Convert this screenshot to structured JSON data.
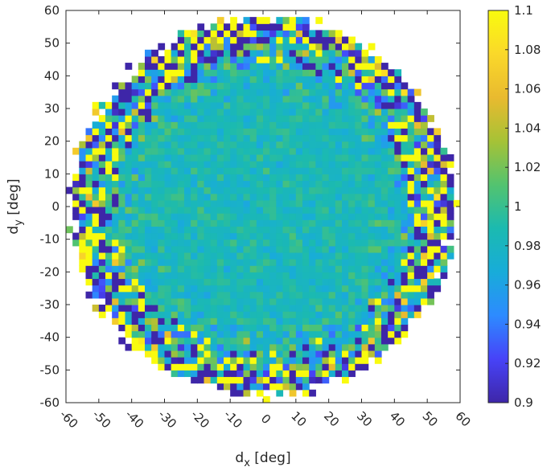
{
  "chart_data": {
    "type": "heatmap",
    "title": "",
    "xlabel": "d",
    "xlabel_sub": "x",
    "xlabel_unit": " [deg]",
    "ylabel": "d",
    "ylabel_sub": "y",
    "ylabel_unit": " [deg]",
    "xlim": [
      -60,
      60
    ],
    "ylim": [
      -60,
      60
    ],
    "x_ticks": [
      -60,
      -50,
      -40,
      -30,
      -20,
      -10,
      0,
      10,
      20,
      30,
      40,
      50,
      60
    ],
    "y_ticks": [
      -60,
      -50,
      -40,
      -30,
      -20,
      -10,
      0,
      10,
      20,
      30,
      40,
      50,
      60
    ],
    "colorbar": {
      "min": 0.9,
      "max": 1.1,
      "ticks": [
        0.9,
        0.92,
        0.94,
        0.96,
        0.98,
        1,
        1.02,
        1.04,
        1.06,
        1.08,
        1.1
      ],
      "colormap": "parula",
      "colors": [
        "#3e26a8",
        "#4743f8",
        "#2d8bff",
        "#18acd9",
        "#1bbab0",
        "#53c36f",
        "#a6c236",
        "#e9ba2f",
        "#fad82a",
        "#f9fb0e"
      ]
    },
    "data_region": "circular disk of radius ~60 deg centered at (0, 0)",
    "center_value": 0.985,
    "edge_pattern": "alternating high (~1.1) and low (~0.9) values near the rim",
    "grid": false
  }
}
